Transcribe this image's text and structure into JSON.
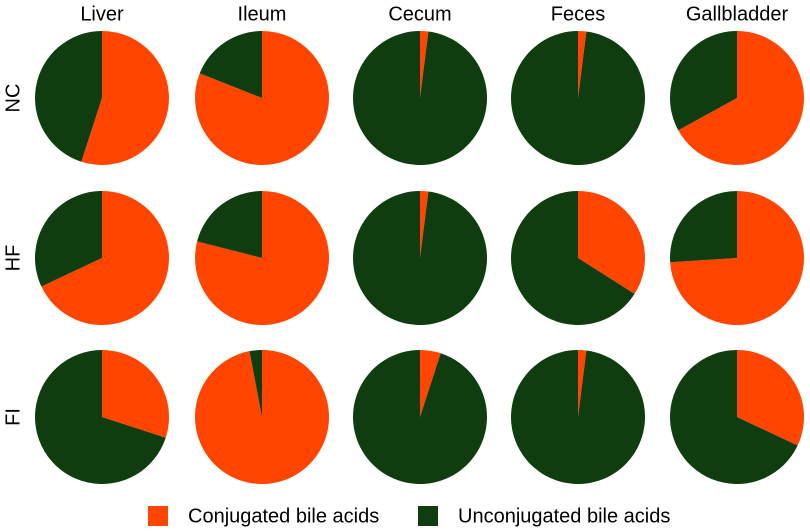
{
  "columns": [
    "Liver",
    "Ileum",
    "Cecum",
    "Feces",
    "Gallbladder"
  ],
  "rows": [
    "NC",
    "HF",
    "FI"
  ],
  "legend": [
    {
      "name": "Conjugated bile acids",
      "color": "#ff4500"
    },
    {
      "name": "Unconjugated bile acids",
      "color": "#0f3d0f"
    }
  ],
  "chart_data": [
    {
      "type": "pie",
      "values": [
        55,
        45
      ]
    },
    {
      "type": "pie",
      "values": [
        81,
        19
      ]
    },
    {
      "type": "pie",
      "values": [
        2,
        98
      ]
    },
    {
      "type": "pie",
      "values": [
        2,
        98
      ]
    },
    {
      "type": "pie",
      "values": [
        67,
        33
      ]
    },
    {
      "type": "pie",
      "values": [
        68,
        32
      ]
    },
    {
      "type": "pie",
      "values": [
        79,
        21
      ]
    },
    {
      "type": "pie",
      "values": [
        2,
        98
      ]
    },
    {
      "type": "pie",
      "values": [
        34,
        66
      ]
    },
    {
      "type": "pie",
      "values": [
        74,
        26
      ]
    },
    {
      "type": "pie",
      "values": [
        30,
        70
      ]
    },
    {
      "type": "pie",
      "values": [
        97,
        3
      ]
    },
    {
      "type": "pie",
      "values": [
        5,
        95
      ]
    },
    {
      "type": "pie",
      "values": [
        2,
        98
      ]
    },
    {
      "type": "pie",
      "values": [
        32,
        68
      ]
    }
  ]
}
